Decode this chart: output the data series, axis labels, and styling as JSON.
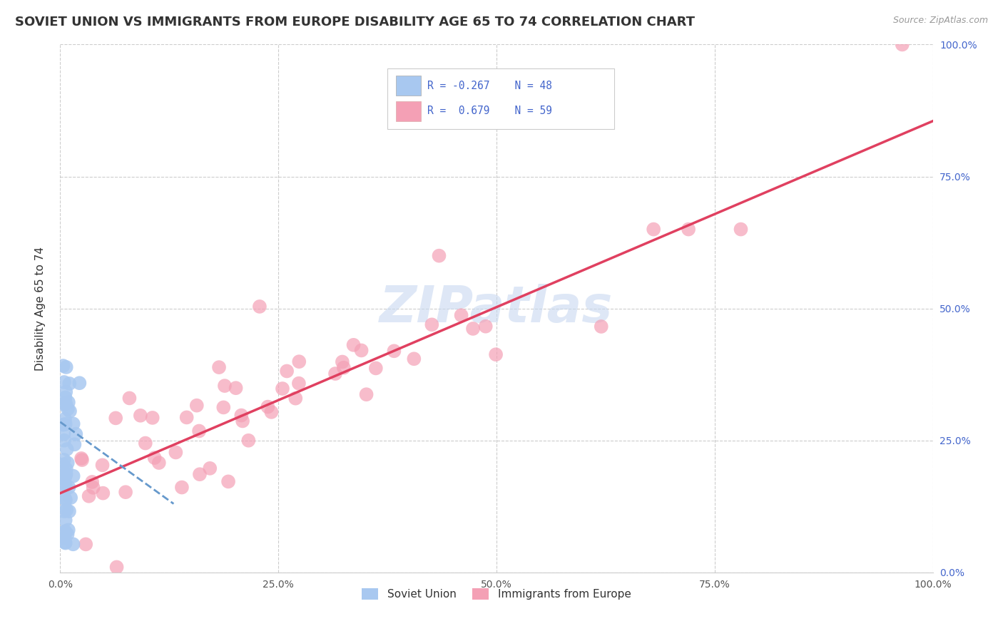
{
  "title": "SOVIET UNION VS IMMIGRANTS FROM EUROPE DISABILITY AGE 65 TO 74 CORRELATION CHART",
  "source": "Source: ZipAtlas.com",
  "ylabel": "Disability Age 65 to 74",
  "xlim": [
    0,
    1.0
  ],
  "ylim": [
    0,
    1.0
  ],
  "xtick_labels": [
    "0.0%",
    "25.0%",
    "50.0%",
    "75.0%",
    "100.0%"
  ],
  "xtick_vals": [
    0.0,
    0.25,
    0.5,
    0.75,
    1.0
  ],
  "ytick_labels_right": [
    "100.0%",
    "75.0%",
    "50.0%",
    "25.0%",
    "0.0%"
  ],
  "ytick_vals": [
    1.0,
    0.75,
    0.5,
    0.25,
    0.0
  ],
  "ytick_labels_right_ordered": [
    "0.0%",
    "25.0%",
    "50.0%",
    "75.0%",
    "100.0%"
  ],
  "ytick_vals_ordered": [
    0.0,
    0.25,
    0.5,
    0.75,
    1.0
  ],
  "watermark": "ZIPatlas",
  "legend_label1": "Soviet Union",
  "legend_label2": "Immigrants from Europe",
  "color_soviet": "#a8c8f0",
  "color_europe": "#f4a0b5",
  "color_soviet_line": "#6699cc",
  "color_europe_line": "#e04060",
  "color_text_blue": "#4466cc",
  "background_color": "#ffffff",
  "grid_color": "#cccccc",
  "title_fontsize": 13,
  "axis_label_fontsize": 11,
  "tick_fontsize": 10,
  "watermark_fontsize": 52,
  "watermark_color": "#c8d8f0",
  "watermark_alpha": 0.6
}
